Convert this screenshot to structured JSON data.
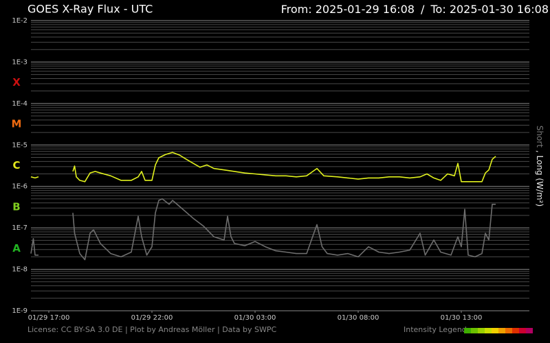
{
  "chart_data": {
    "type": "line",
    "title": "GOES X-Ray Flux - UTC",
    "subtitle_from": "From: 2025-01-29 16:08",
    "subtitle_sep": "/",
    "subtitle_to": "To: 2025-01-30 16:08",
    "log_y": true,
    "grid": true,
    "xlim": [
      "2025-01-29T16:08",
      "2025-01-30T16:08"
    ],
    "xticks": [
      {
        "value": "2025-01-29T17:00",
        "label": "01/29 17:00"
      },
      {
        "value": "2025-01-29T22:00",
        "label": "01/29 22:00"
      },
      {
        "value": "2025-01-30T03:00",
        "label": "01/30 03:00"
      },
      {
        "value": "2025-01-30T08:00",
        "label": "01/30 08:00"
      },
      {
        "value": "2025-01-30T13:00",
        "label": "01/30 13:00"
      }
    ],
    "ylim": [
      1e-09,
      0.01
    ],
    "yticks": [
      {
        "value": 1e-09,
        "label": "1E-9"
      },
      {
        "value": 1e-08,
        "label": "1E-8"
      },
      {
        "value": 1e-07,
        "label": "1E-7"
      },
      {
        "value": 1e-06,
        "label": "1E-6"
      },
      {
        "value": 1e-05,
        "label": "1E-5"
      },
      {
        "value": 0.0001,
        "label": "1E-4"
      },
      {
        "value": 0.001,
        "label": "1E-3"
      },
      {
        "value": 0.01,
        "label": "1E-2"
      }
    ],
    "class_labels": [
      {
        "text": "A",
        "color": "#22b322"
      },
      {
        "text": "B",
        "color": "#7fcc1f"
      },
      {
        "text": "C",
        "color": "#e4e81c"
      },
      {
        "text": "M",
        "color": "#ee6a10"
      },
      {
        "text": "X",
        "color": "#cc1010"
      }
    ],
    "legend_separator": ",",
    "y_unit": "(W/m²)",
    "series": [
      {
        "name": "Short",
        "color": "#6e6e6e",
        "x": [
          "2025-01-29T16:08",
          "2025-01-29T16:15",
          "2025-01-29T16:20",
          "2025-01-29T16:30",
          "2025-01-29T17:00",
          "2025-01-29T18:10",
          "2025-01-29T18:15",
          "2025-01-29T18:30",
          "2025-01-29T18:45",
          "2025-01-29T19:00",
          "2025-01-29T19:10",
          "2025-01-29T19:30",
          "2025-01-29T20:00",
          "2025-01-29T20:30",
          "2025-01-29T21:00",
          "2025-01-29T21:20",
          "2025-01-29T21:30",
          "2025-01-29T21:45",
          "2025-01-29T22:00",
          "2025-01-29T22:10",
          "2025-01-29T22:20",
          "2025-01-29T22:30",
          "2025-01-29T22:50",
          "2025-01-29T23:00",
          "2025-01-29T23:30",
          "2025-01-30T00:00",
          "2025-01-30T00:30",
          "2025-01-30T01:00",
          "2025-01-30T01:30",
          "2025-01-30T01:40",
          "2025-01-30T01:50",
          "2025-01-30T02:00",
          "2025-01-30T02:30",
          "2025-01-30T03:00",
          "2025-01-30T03:30",
          "2025-01-30T04:00",
          "2025-01-30T04:30",
          "2025-01-30T05:00",
          "2025-01-30T05:30",
          "2025-01-30T06:00",
          "2025-01-30T06:15",
          "2025-01-30T06:30",
          "2025-01-30T07:00",
          "2025-01-30T07:30",
          "2025-01-30T08:00",
          "2025-01-30T08:30",
          "2025-01-30T09:00",
          "2025-01-30T09:30",
          "2025-01-30T10:00",
          "2025-01-30T10:30",
          "2025-01-30T11:00",
          "2025-01-30T11:15",
          "2025-01-30T11:40",
          "2025-01-30T12:00",
          "2025-01-30T12:30",
          "2025-01-30T12:50",
          "2025-01-30T13:00",
          "2025-01-30T13:10",
          "2025-01-30T13:20",
          "2025-01-30T13:40",
          "2025-01-30T14:00",
          "2025-01-30T14:10",
          "2025-01-30T14:20",
          "2025-01-30T14:30",
          "2025-01-30T14:40"
        ],
        "values": [
          2.4e-08,
          5.5e-08,
          2.2e-08,
          2.2e-08,
          null,
          2.3e-07,
          7.4e-08,
          2.4e-08,
          1.7e-08,
          7.4e-08,
          9e-08,
          4.2e-08,
          2.4e-08,
          2e-08,
          2.6e-08,
          1.9e-07,
          6.1e-08,
          2.2e-08,
          3.5e-08,
          2.3e-07,
          4.6e-07,
          5e-07,
          3.7e-07,
          4.6e-07,
          2.8e-07,
          1.7e-07,
          1.1e-07,
          6.1e-08,
          5.1e-08,
          1.9e-07,
          6.1e-08,
          4.2e-08,
          3.7e-08,
          4.7e-08,
          3.5e-08,
          2.8e-08,
          2.6e-08,
          2.4e-08,
          2.4e-08,
          1.2e-07,
          3.5e-08,
          2.4e-08,
          2.2e-08,
          2.4e-08,
          2e-08,
          3.5e-08,
          2.6e-08,
          2.4e-08,
          2.6e-08,
          2.9e-08,
          7.4e-08,
          2.2e-08,
          5.1e-08,
          2.6e-08,
          2.2e-08,
          6.1e-08,
          3.5e-08,
          2.8e-07,
          2.2e-08,
          2e-08,
          2.4e-08,
          7.4e-08,
          5.1e-08,
          3.7e-07,
          3.7e-07
        ]
      },
      {
        "name": "Long",
        "color": "#e2f21e",
        "x": [
          "2025-01-29T16:08",
          "2025-01-29T16:20",
          "2025-01-29T16:30",
          "2025-01-29T17:00",
          "2025-01-29T18:10",
          "2025-01-29T18:15",
          "2025-01-29T18:20",
          "2025-01-29T18:30",
          "2025-01-29T18:45",
          "2025-01-29T19:00",
          "2025-01-29T19:15",
          "2025-01-29T19:30",
          "2025-01-29T20:00",
          "2025-01-29T20:30",
          "2025-01-29T21:00",
          "2025-01-29T21:20",
          "2025-01-29T21:30",
          "2025-01-29T21:40",
          "2025-01-29T22:00",
          "2025-01-29T22:10",
          "2025-01-29T22:20",
          "2025-01-29T22:40",
          "2025-01-29T23:00",
          "2025-01-29T23:20",
          "2025-01-29T23:40",
          "2025-01-30T00:00",
          "2025-01-30T00:20",
          "2025-01-30T00:40",
          "2025-01-30T01:00",
          "2025-01-30T01:30",
          "2025-01-30T02:00",
          "2025-01-30T02:30",
          "2025-01-30T03:00",
          "2025-01-30T03:30",
          "2025-01-30T04:00",
          "2025-01-30T04:30",
          "2025-01-30T05:00",
          "2025-01-30T05:30",
          "2025-01-30T06:00",
          "2025-01-30T06:20",
          "2025-01-30T07:00",
          "2025-01-30T07:30",
          "2025-01-30T08:00",
          "2025-01-30T08:30",
          "2025-01-30T09:00",
          "2025-01-30T09:30",
          "2025-01-30T10:00",
          "2025-01-30T10:30",
          "2025-01-30T11:00",
          "2025-01-30T11:20",
          "2025-01-30T11:40",
          "2025-01-30T12:00",
          "2025-01-30T12:20",
          "2025-01-30T12:40",
          "2025-01-30T12:50",
          "2025-01-30T13:00",
          "2025-01-30T13:30",
          "2025-01-30T14:00",
          "2025-01-30T14:10",
          "2025-01-30T14:20",
          "2025-01-30T14:30",
          "2025-01-30T14:40"
        ],
        "values": [
          1.7e-06,
          1.6e-06,
          1.7e-06,
          null,
          2.3e-06,
          3.1e-06,
          1.7e-06,
          1.4e-06,
          1.3e-06,
          2.1e-06,
          2.3e-06,
          2.1e-06,
          1.8e-06,
          1.4e-06,
          1.4e-06,
          1.7e-06,
          2.3e-06,
          1.4e-06,
          1.4e-06,
          3.3e-06,
          4.9e-06,
          5.9e-06,
          6.6e-06,
          5.7e-06,
          4.5e-06,
          3.6e-06,
          2.9e-06,
          3.3e-06,
          2.7e-06,
          2.5e-06,
          2.3e-06,
          2.1e-06,
          2e-06,
          1.9e-06,
          1.8e-06,
          1.8e-06,
          1.7e-06,
          1.8e-06,
          2.7e-06,
          1.8e-06,
          1.7e-06,
          1.6e-06,
          1.5e-06,
          1.6e-06,
          1.6e-06,
          1.7e-06,
          1.7e-06,
          1.6e-06,
          1.7e-06,
          2e-06,
          1.6e-06,
          1.4e-06,
          2e-06,
          1.8e-06,
          3.6e-06,
          1.3e-06,
          1.3e-06,
          1.3e-06,
          2.1e-06,
          2.5e-06,
          4.5e-06,
          5.3e-06
        ]
      }
    ]
  },
  "footer": {
    "license": "License: CC BY-SA 3.0 DE | Plot by Andreas Möller | Data by SWPC",
    "intensity_legend": "Intensity Legend"
  }
}
